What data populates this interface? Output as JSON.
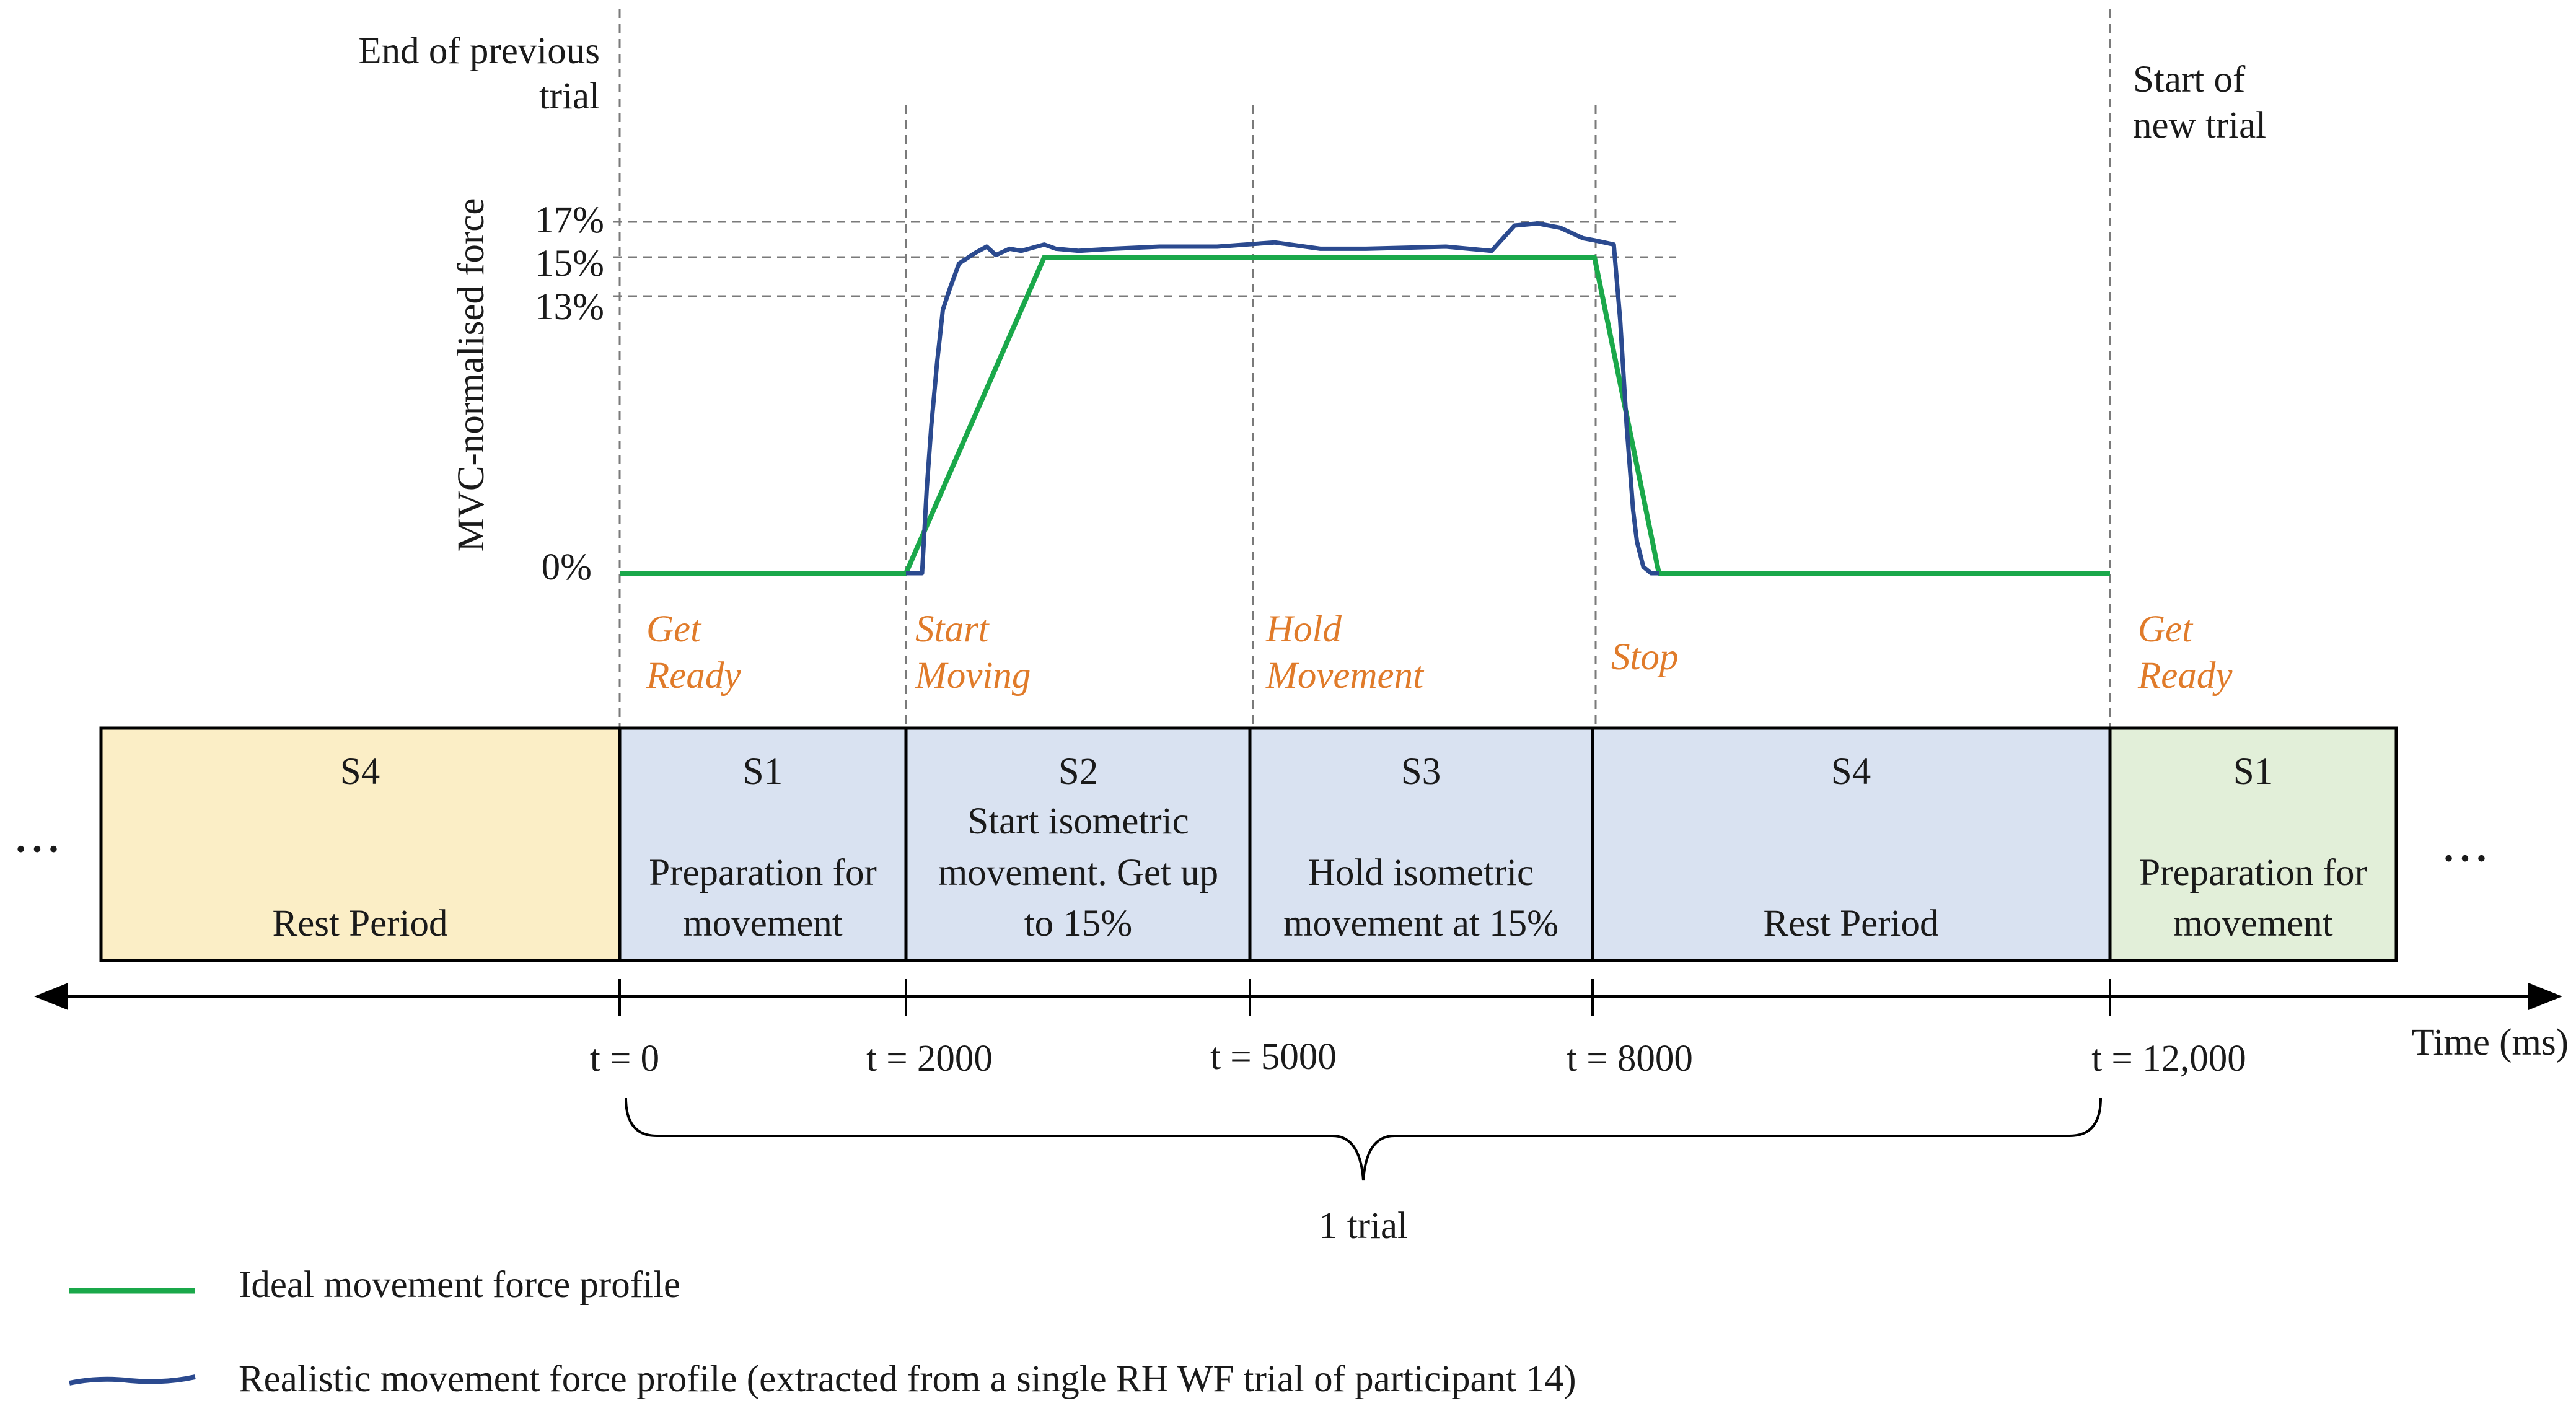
{
  "colors": {
    "ideal": "#1aa84a",
    "realistic": "#2b4a8f",
    "cue": "#e07b2a",
    "seg_rest_yellow": "#fbeec6",
    "seg_blue": "#d9e2f1",
    "seg_green": "#e2efd9"
  },
  "top_labels": {
    "end_prev": [
      "End of previous",
      "trial"
    ],
    "start_new": [
      "Start of",
      "new trial"
    ]
  },
  "y_axis": {
    "title": "MVC-normalised force",
    "ticks": [
      "17%",
      "15%",
      "13%",
      "0%"
    ]
  },
  "cues": {
    "get_ready_1": [
      "Get",
      "Ready"
    ],
    "start_moving": [
      "Start",
      "Moving"
    ],
    "hold_movement": [
      "Hold",
      "Movement"
    ],
    "stop": [
      "Stop"
    ],
    "get_ready_2": [
      "Get",
      "Ready"
    ]
  },
  "segments": [
    {
      "id": "S4",
      "desc": [
        "",
        "Rest Period"
      ],
      "fill": "#fbeec6"
    },
    {
      "id": "S1",
      "desc": [
        "Preparation for",
        "movement"
      ],
      "fill": "#d9e2f1"
    },
    {
      "id": "S2",
      "desc": [
        "Start isometric",
        "movement. Get up",
        "to 15%"
      ],
      "fill": "#d9e2f1"
    },
    {
      "id": "S3",
      "desc": [
        "Hold isometric",
        "movement at 15%"
      ],
      "fill": "#d9e2f1"
    },
    {
      "id": "S4",
      "desc": [
        "",
        "Rest Period"
      ],
      "fill": "#d9e2f1"
    },
    {
      "id": "S1",
      "desc": [
        "Preparation for",
        "movement"
      ],
      "fill": "#e2efd9"
    }
  ],
  "ellipsis": "• • •",
  "time_axis": {
    "label": "Time (ms)",
    "ticks": [
      "t = 0",
      "t = 2000",
      "t = 5000",
      "t = 8000",
      "t = 12,000"
    ]
  },
  "trial_label": "1 trial",
  "legend": {
    "ideal": "Ideal movement force profile",
    "realistic": "Realistic movement force profile (extracted from a single RH WF trial of participant 14)"
  },
  "chart_data": {
    "type": "line",
    "xlabel": "Time (ms)",
    "ylabel": "MVC-normalised force",
    "series": [
      {
        "name": "Ideal movement force profile",
        "x": [
          0,
          2000,
          3200,
          8000,
          8500,
          12000
        ],
        "y": [
          0,
          0,
          15,
          15,
          0,
          0
        ]
      },
      {
        "name": "Realistic movement force profile (extracted from a single RH WF trial of participant 14)",
        "x": [
          2000,
          2140,
          2180,
          2220,
          2270,
          2320,
          2380,
          2460,
          2600,
          2700,
          2780,
          2900,
          3000,
          3200,
          3300,
          3500,
          3800,
          4200,
          4700,
          5200,
          5600,
          6000,
          6700,
          7100,
          7300,
          7500,
          7700,
          7900,
          8000,
          8150,
          8200,
          8250,
          8300,
          8330,
          8380,
          8440,
          8500
        ],
        "y": [
          0,
          0,
          4,
          7,
          10,
          12.5,
          13.5,
          14.7,
          15.2,
          15.5,
          15.1,
          15.4,
          15.3,
          15.6,
          15.4,
          15.3,
          15.4,
          15.5,
          15.5,
          15.7,
          15.4,
          15.4,
          15.5,
          15.3,
          16.5,
          16.6,
          16.4,
          15.9,
          15.8,
          15.6,
          12,
          7,
          3,
          1.5,
          0.3,
          0,
          0
        ]
      }
    ]
  }
}
